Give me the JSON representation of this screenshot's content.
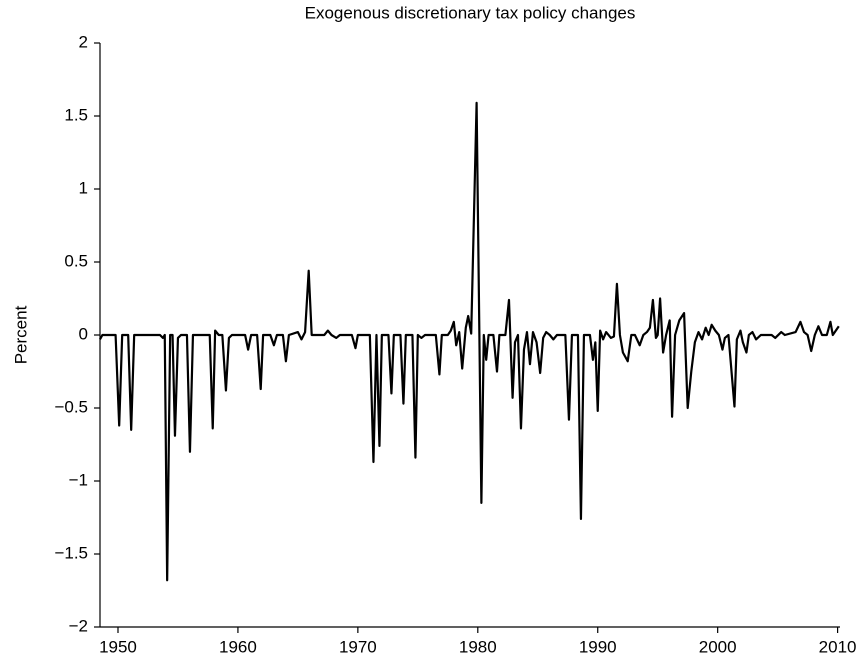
{
  "chart_data": {
    "type": "line",
    "title": "Exogenous discretionary tax policy changes",
    "y_label": "Percent",
    "xlim": [
      1948.5,
      2010.2
    ],
    "xticks": [
      1950,
      1960,
      1970,
      1980,
      1990,
      2000,
      2010
    ],
    "ylim": [
      -2,
      2
    ],
    "yticks": [
      {
        "value": -2,
        "label": "−2"
      },
      {
        "value": -1.5,
        "label": "−1.5"
      },
      {
        "value": -1,
        "label": "−1"
      },
      {
        "value": -0.5,
        "label": "−0.5"
      },
      0,
      0.5,
      1,
      1.5,
      2
    ],
    "grid": false,
    "series": [
      {
        "color": "#000000",
        "x": [
          1948.5,
          1948.7,
          1949.8,
          1950.1,
          1950.35,
          1950.85,
          1951.1,
          1951.35,
          1953.5,
          1953.75,
          1953.9,
          1954.1,
          1954.35,
          1954.55,
          1954.75,
          1955.0,
          1955.25,
          1955.75,
          1956.0,
          1956.25,
          1957.65,
          1957.9,
          1958.1,
          1958.4,
          1958.7,
          1959.0,
          1959.25,
          1959.5,
          1960.6,
          1960.85,
          1961.1,
          1961.6,
          1961.9,
          1962.1,
          1962.7,
          1963.0,
          1963.25,
          1963.75,
          1964.0,
          1964.25,
          1965.0,
          1965.3,
          1965.6,
          1965.9,
          1966.15,
          1967.2,
          1967.5,
          1967.8,
          1968.2,
          1968.5,
          1969.5,
          1969.8,
          1970.0,
          1971.0,
          1971.3,
          1971.55,
          1971.8,
          1972.0,
          1972.55,
          1972.8,
          1973.0,
          1973.55,
          1973.8,
          1974.0,
          1974.55,
          1974.8,
          1975.0,
          1975.3,
          1975.6,
          1976.5,
          1976.8,
          1977.0,
          1977.5,
          1977.75,
          1978.0,
          1978.2,
          1978.45,
          1978.7,
          1979.0,
          1979.2,
          1979.45,
          1979.9,
          1980.3,
          1980.5,
          1980.7,
          1980.9,
          1981.3,
          1981.6,
          1981.8,
          1982.3,
          1982.6,
          1982.9,
          1983.1,
          1983.35,
          1983.6,
          1983.85,
          1984.1,
          1984.35,
          1984.6,
          1984.9,
          1985.2,
          1985.45,
          1985.7,
          1986.0,
          1986.3,
          1986.6,
          1987.3,
          1987.6,
          1987.85,
          1988.35,
          1988.6,
          1988.85,
          1989.35,
          1989.6,
          1989.8,
          1990.0,
          1990.2,
          1990.45,
          1990.7,
          1991.1,
          1991.35,
          1991.6,
          1991.85,
          1992.1,
          1992.5,
          1992.8,
          1993.1,
          1993.5,
          1993.8,
          1994.1,
          1994.35,
          1994.6,
          1994.85,
          1995.0,
          1995.2,
          1995.45,
          1995.7,
          1996.0,
          1996.2,
          1996.45,
          1996.8,
          1997.2,
          1997.5,
          1997.8,
          1998.1,
          1998.4,
          1998.7,
          1999.0,
          1999.25,
          1999.5,
          1999.8,
          2000.1,
          2000.4,
          2000.6,
          2000.9,
          2001.4,
          2001.6,
          2001.9,
          2002.1,
          2002.4,
          2002.6,
          2002.9,
          2003.2,
          2003.6,
          2004.5,
          2004.8,
          2005.3,
          2005.6,
          2006.5,
          2006.9,
          2007.2,
          2007.5,
          2007.8,
          2008.1,
          2008.4,
          2008.7,
          2009.1,
          2009.4,
          2009.6,
          2010.1
        ],
        "values": [
          -0.03,
          0,
          0,
          -0.62,
          0,
          0,
          -0.65,
          0,
          0,
          -0.02,
          0,
          -1.68,
          0,
          0,
          -0.69,
          -0.02,
          0,
          0,
          -0.8,
          0,
          0,
          -0.64,
          0.03,
          0,
          0,
          -0.38,
          -0.02,
          0,
          0,
          -0.1,
          0,
          0,
          -0.37,
          0,
          0,
          -0.07,
          0,
          0,
          -0.18,
          0,
          0.02,
          -0.03,
          0.02,
          0.44,
          0,
          0,
          0.03,
          0,
          -0.02,
          0,
          0,
          -0.09,
          0,
          0,
          -0.87,
          0,
          -0.76,
          0,
          0,
          -0.4,
          0,
          0,
          -0.47,
          0,
          0,
          -0.84,
          0,
          -0.02,
          0,
          0,
          -0.27,
          0,
          0,
          0.03,
          0.09,
          -0.07,
          0.02,
          -0.23,
          0.05,
          0.13,
          0.01,
          1.59,
          -1.15,
          0,
          -0.17,
          0,
          0,
          -0.25,
          0,
          0,
          0.24,
          -0.43,
          -0.05,
          0,
          -0.64,
          -0.1,
          0.02,
          -0.2,
          0.02,
          -0.05,
          -0.26,
          -0.02,
          0.02,
          0,
          -0.03,
          0,
          0,
          -0.58,
          0,
          0,
          -1.26,
          0,
          0,
          -0.17,
          -0.05,
          -0.52,
          0.03,
          -0.03,
          0.02,
          -0.02,
          -0.01,
          0.35,
          0,
          -0.12,
          -0.18,
          0,
          0,
          -0.07,
          0,
          0.02,
          0.05,
          0.24,
          -0.02,
          0,
          0.25,
          -0.12,
          0,
          0.1,
          -0.56,
          0,
          0.1,
          0.15,
          -0.5,
          -0.25,
          -0.05,
          0.02,
          -0.03,
          0.05,
          0,
          0.07,
          0.03,
          0,
          -0.1,
          -0.02,
          0,
          -0.49,
          -0.03,
          0.03,
          -0.05,
          -0.12,
          0,
          0.02,
          -0.03,
          0,
          0,
          -0.02,
          0.02,
          0,
          0.02,
          0.09,
          0.02,
          0,
          -0.11,
          0,
          0.06,
          0,
          0,
          0.09,
          0,
          0.06
        ]
      }
    ]
  }
}
